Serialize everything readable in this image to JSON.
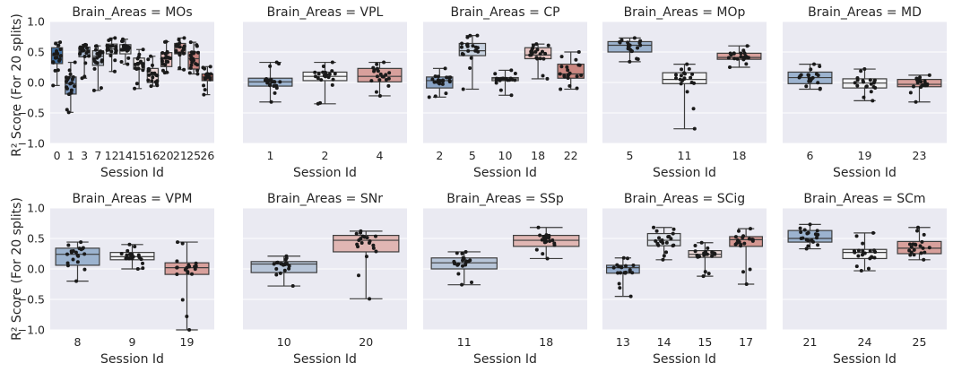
{
  "figure": {
    "ylabel": "R² Score (For 20 splits)",
    "xlabel": "Session Id",
    "yticks": [
      1.0,
      0.5,
      0.0,
      -0.5,
      -1.0
    ],
    "ytick_labels": [
      "1.0",
      "0.5",
      "0.0",
      "−0.5",
      "−1.0"
    ]
  },
  "chart_data": [
    {
      "type": "box",
      "title": "Brain_Areas = MOs",
      "xlabel": "Session Id",
      "ylim": [
        -1.0,
        1.0
      ],
      "grid": true,
      "categories": [
        "0",
        "1",
        "3",
        "7",
        "12",
        "14",
        "15",
        "16",
        "20",
        "21",
        "25",
        "26"
      ],
      "colors": [
        "#3f6fa3",
        "#7b97bd",
        "#a6b7cf",
        "#c6d0df",
        "#dfe3ea",
        "#f1f1f3",
        "#f3eeee",
        "#ecd7d7",
        "#e3bcbb",
        "#d8a3a1",
        "#c9847f",
        "#b86a63"
      ],
      "boxes": [
        {
          "q1": 0.31,
          "median": 0.44,
          "q3": 0.57,
          "wlo": -0.05,
          "whi": 0.66
        },
        {
          "q1": -0.19,
          "median": -0.02,
          "q3": 0.09,
          "wlo": -0.49,
          "whi": 0.33
        },
        {
          "q1": 0.42,
          "median": 0.52,
          "q3": 0.58,
          "wlo": 0.07,
          "whi": 0.62
        },
        {
          "q1": 0.28,
          "median": 0.43,
          "q3": 0.52,
          "wlo": -0.13,
          "whi": 0.6
        },
        {
          "q1": 0.47,
          "median": 0.55,
          "q3": 0.63,
          "wlo": 0.18,
          "whi": 0.73
        },
        {
          "q1": 0.47,
          "median": 0.55,
          "q3": 0.62,
          "wlo": 0.3,
          "whi": 0.71
        },
        {
          "q1": 0.22,
          "median": 0.31,
          "q3": 0.4,
          "wlo": -0.1,
          "whi": 0.54
        },
        {
          "q1": 0.0,
          "median": 0.12,
          "q3": 0.23,
          "wlo": -0.06,
          "whi": 0.43
        },
        {
          "q1": 0.26,
          "median": 0.4,
          "q3": 0.49,
          "wlo": 0.16,
          "whi": 0.67
        },
        {
          "q1": 0.47,
          "median": 0.57,
          "q3": 0.64,
          "wlo": 0.21,
          "whi": 0.73
        },
        {
          "q1": 0.22,
          "median": 0.39,
          "q3": 0.5,
          "wlo": 0.14,
          "whi": 0.66
        },
        {
          "q1": 0.03,
          "median": 0.09,
          "q3": 0.14,
          "wlo": -0.2,
          "whi": 0.26
        }
      ]
    },
    {
      "type": "box",
      "title": "Brain_Areas = VPL",
      "xlabel": "Session Id",
      "ylim": [
        -1.0,
        1.0
      ],
      "grid": true,
      "categories": [
        "1",
        "2",
        "4"
      ],
      "colors": [
        "#9cb3cf",
        "#f3f3f5",
        "#d8a09c"
      ],
      "boxes": [
        {
          "q1": -0.06,
          "median": 0.01,
          "q3": 0.07,
          "wlo": -0.32,
          "whi": 0.33
        },
        {
          "q1": 0.03,
          "median": 0.1,
          "q3": 0.17,
          "wlo": -0.35,
          "whi": 0.33
        },
        {
          "q1": 0.01,
          "median": 0.1,
          "q3": 0.23,
          "wlo": -0.22,
          "whi": 0.33
        }
      ]
    },
    {
      "type": "box",
      "title": "Brain_Areas = CP",
      "xlabel": "Session Id",
      "ylim": [
        -1.0,
        1.0
      ],
      "grid": true,
      "categories": [
        "2",
        "5",
        "10",
        "18",
        "22"
      ],
      "colors": [
        "#8aa4c6",
        "#c7d1df",
        "#f1f1f3",
        "#e6c3c1",
        "#cb8781"
      ],
      "boxes": [
        {
          "q1": -0.09,
          "median": 0.03,
          "q3": 0.09,
          "wlo": -0.24,
          "whi": 0.23
        },
        {
          "q1": 0.44,
          "median": 0.52,
          "q3": 0.64,
          "wlo": -0.11,
          "whi": 0.77
        },
        {
          "q1": 0.03,
          "median": 0.06,
          "q3": 0.08,
          "wlo": -0.21,
          "whi": 0.2
        },
        {
          "q1": 0.39,
          "median": 0.45,
          "q3": 0.57,
          "wlo": 0.06,
          "whi": 0.63
        },
        {
          "q1": 0.07,
          "median": 0.14,
          "q3": 0.3,
          "wlo": -0.11,
          "whi": 0.5
        }
      ]
    },
    {
      "type": "box",
      "title": "Brain_Areas = MOp",
      "xlabel": "Session Id",
      "ylim": [
        -1.0,
        1.0
      ],
      "grid": true,
      "categories": [
        "5",
        "11",
        "18"
      ],
      "colors": [
        "#9cb3cf",
        "#f3f3f5",
        "#d8a09c"
      ],
      "boxes": [
        {
          "q1": 0.5,
          "median": 0.61,
          "q3": 0.67,
          "wlo": 0.34,
          "whi": 0.73
        },
        {
          "q1": -0.02,
          "median": 0.05,
          "q3": 0.16,
          "wlo": -0.76,
          "whi": 0.3
        },
        {
          "q1": 0.38,
          "median": 0.41,
          "q3": 0.48,
          "wlo": 0.25,
          "whi": 0.6
        }
      ]
    },
    {
      "type": "box",
      "title": "Brain_Areas = MD",
      "xlabel": "Session Id",
      "ylim": [
        -1.0,
        1.0
      ],
      "grid": true,
      "categories": [
        "6",
        "19",
        "23"
      ],
      "colors": [
        "#9cb3cf",
        "#f3f3f5",
        "#d8a09c"
      ],
      "boxes": [
        {
          "q1": -0.02,
          "median": 0.08,
          "q3": 0.17,
          "wlo": -0.11,
          "whi": 0.3
        },
        {
          "q1": -0.09,
          "median": -0.01,
          "q3": 0.06,
          "wlo": -0.3,
          "whi": 0.22
        },
        {
          "q1": -0.07,
          "median": -0.03,
          "q3": 0.05,
          "wlo": -0.32,
          "whi": 0.12
        }
      ]
    },
    {
      "type": "box",
      "title": "Brain_Areas = VPM",
      "xlabel": "Session Id",
      "ylim": [
        -1.0,
        1.0
      ],
      "grid": true,
      "categories": [
        "8",
        "9",
        "19"
      ],
      "colors": [
        "#9cb3cf",
        "#f3f3f5",
        "#d8a09c"
      ],
      "boxes": [
        {
          "q1": 0.06,
          "median": 0.24,
          "q3": 0.34,
          "wlo": -0.2,
          "whi": 0.44
        },
        {
          "q1": 0.15,
          "median": 0.2,
          "q3": 0.27,
          "wlo": 0.0,
          "whi": 0.4
        },
        {
          "q1": -0.09,
          "median": 0.02,
          "q3": 0.1,
          "wlo": -1.0,
          "whi": 0.44
        }
      ]
    },
    {
      "type": "box",
      "title": "Brain_Areas = SNr",
      "xlabel": "Session Id",
      "ylim": [
        -1.0,
        1.0
      ],
      "grid": true,
      "categories": [
        "10",
        "20"
      ],
      "colors": [
        "#b8c6d9",
        "#e0b6b3"
      ],
      "boxes": [
        {
          "q1": -0.06,
          "median": 0.08,
          "q3": 0.12,
          "wlo": -0.28,
          "whi": 0.21
        },
        {
          "q1": 0.28,
          "median": 0.47,
          "q3": 0.55,
          "wlo": -0.49,
          "whi": 0.62
        }
      ]
    },
    {
      "type": "box",
      "title": "Brain_Areas = SSp",
      "xlabel": "Session Id",
      "ylim": [
        -1.0,
        1.0
      ],
      "grid": true,
      "categories": [
        "11",
        "18"
      ],
      "colors": [
        "#b8c6d9",
        "#e0b6b3"
      ],
      "boxes": [
        {
          "q1": 0.0,
          "median": 0.1,
          "q3": 0.18,
          "wlo": -0.26,
          "whi": 0.28
        },
        {
          "q1": 0.37,
          "median": 0.47,
          "q3": 0.55,
          "wlo": 0.17,
          "whi": 0.68
        }
      ]
    },
    {
      "type": "box",
      "title": "Brain_Areas = SCig",
      "xlabel": "Session Id",
      "ylim": [
        -1.0,
        1.0
      ],
      "grid": true,
      "categories": [
        "13",
        "14",
        "15",
        "17"
      ],
      "colors": [
        "#93abcb",
        "#dfe3ea",
        "#ecd9d8",
        "#d49791"
      ],
      "boxes": [
        {
          "q1": -0.07,
          "median": 0.02,
          "q3": 0.06,
          "wlo": -0.45,
          "whi": 0.18
        },
        {
          "q1": 0.38,
          "median": 0.47,
          "q3": 0.58,
          "wlo": 0.15,
          "whi": 0.68
        },
        {
          "q1": 0.19,
          "median": 0.24,
          "q3": 0.3,
          "wlo": -0.12,
          "whi": 0.43
        },
        {
          "q1": 0.37,
          "median": 0.48,
          "q3": 0.53,
          "wlo": -0.25,
          "whi": 0.66
        }
      ]
    },
    {
      "type": "box",
      "title": "Brain_Areas = SCm",
      "xlabel": "Session Id",
      "ylim": [
        -1.0,
        1.0
      ],
      "grid": true,
      "categories": [
        "21",
        "24",
        "25"
      ],
      "colors": [
        "#9cb3cf",
        "#f3f3f5",
        "#d8a09c"
      ],
      "boxes": [
        {
          "q1": 0.44,
          "median": 0.5,
          "q3": 0.63,
          "wlo": 0.33,
          "whi": 0.73
        },
        {
          "q1": 0.17,
          "median": 0.27,
          "q3": 0.32,
          "wlo": -0.03,
          "whi": 0.59
        },
        {
          "q1": 0.25,
          "median": 0.34,
          "q3": 0.45,
          "wlo": 0.15,
          "whi": 0.68
        }
      ]
    }
  ]
}
